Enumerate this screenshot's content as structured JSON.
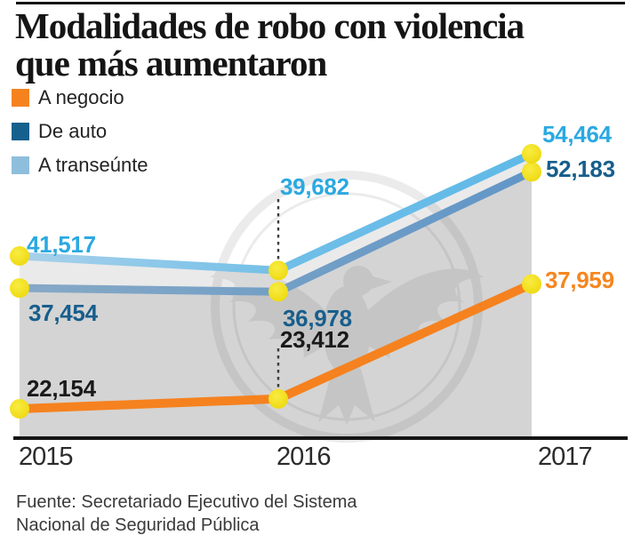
{
  "header": {
    "title": "Modalidades de robo con violencia que más aumentaron",
    "title_lines": [
      "Modalidades de robo con violencia",
      "que más aumentaron"
    ]
  },
  "legend": {
    "items": [
      {
        "label": "A negocio",
        "color": "#F5821F"
      },
      {
        "label": "De auto",
        "color": "#16608E"
      },
      {
        "label": "A transeúnte",
        "color": "#8FBEDC"
      }
    ]
  },
  "chart_data": {
    "type": "line",
    "title": "Modalidades de robo con violencia que más aumentaron",
    "categories": [
      "2015",
      "2016",
      "2017"
    ],
    "series": [
      {
        "name": "A negocio",
        "values": [
          22154,
          23412,
          37959
        ],
        "value_labels": [
          "22,154",
          "23,412",
          "37,959"
        ],
        "line_color": "#F5821F",
        "label_colors": [
          "#1A1A1A",
          "#1A1A1A",
          "#F6861F"
        ]
      },
      {
        "name": "De auto",
        "values": [
          37454,
          36978,
          52183
        ],
        "value_labels": [
          "37,454",
          "36,978",
          "52,183"
        ],
        "line_color": "#7AA3C8",
        "label_colors": [
          "#175E8C",
          "#175E8C",
          "#175E8C"
        ]
      },
      {
        "name": "A transeúnte",
        "values": [
          41517,
          39682,
          54464
        ],
        "value_labels": [
          "41,517",
          "39,682",
          "54,464"
        ],
        "line_color": "#7FC4E9",
        "label_colors": [
          "#2BA9E1",
          "#2BA9E1",
          "#2BA9E1"
        ]
      }
    ],
    "xlabel": "",
    "ylabel": "",
    "ylim": [
      18400,
      56000
    ],
    "grid": false,
    "legend_position": "top-left",
    "point_marker_color": "#F2E11E",
    "area_fills": [
      "#EAEAEA",
      "#D4D4D4"
    ],
    "annotations": "dashed leader lines at 2016 connecting labels 39,682 and 23,412 to their points",
    "watermark": "eagle-seal"
  },
  "footer": {
    "source_lines": [
      "Fuente: Secretariado Ejecutivo del Sistema",
      "Nacional de Seguridad Pública"
    ],
    "source": "Fuente: Secretariado Ejecutivo del Sistema Nacional de Seguridad Pública"
  }
}
